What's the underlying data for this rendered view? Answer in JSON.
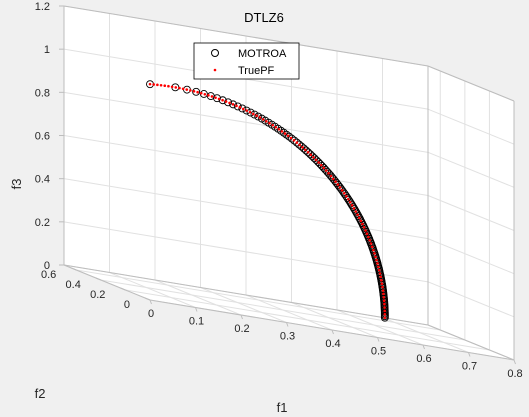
{
  "chart_data": {
    "type": "scatter",
    "title": "DTLZ6",
    "xlabel": "f1",
    "ylabel": "f2",
    "zlabel": "f3",
    "xlim": [
      0,
      0.8
    ],
    "ylim": [
      0,
      0.7
    ],
    "zlim": [
      0,
      1.2
    ],
    "xticks": [
      "0",
      "0.1",
      "0.2",
      "0.3",
      "0.4",
      "0.5",
      "0.6",
      "0.7",
      "0.8"
    ],
    "yticks": [
      "0",
      "0.2",
      "0.4",
      "0.6"
    ],
    "zticks": [
      "0",
      "0.2",
      "0.4",
      "0.6",
      "0.8",
      "1",
      "1.2"
    ],
    "grid": true,
    "legend_position": "top",
    "series": [
      {
        "name": "MOTROA",
        "marker": "open-circle",
        "color": "#000000",
        "description": "points along the curve f1 = f2 = 0.7071*sin(t), f3 = cos(t)"
      },
      {
        "name": "TruePF",
        "marker": "dot",
        "color": "#ff0000",
        "description": "points along the curve f1 = f2 = 0.7071*sin(t), f3 = cos(t)"
      }
    ],
    "curve_parameter_range": [
      0,
      1.5708
    ]
  }
}
